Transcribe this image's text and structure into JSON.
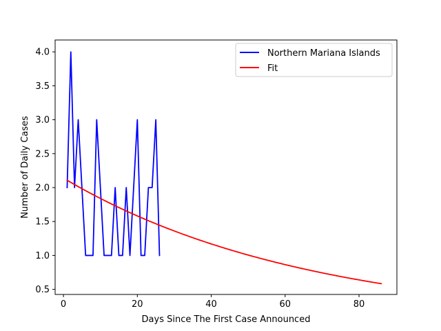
{
  "chart_data": {
    "type": "line",
    "xlabel": "Days Since The First Case Announced",
    "ylabel": "Number of Daily Cases",
    "xlim": [
      -2.25,
      90.25
    ],
    "ylim": [
      0.425,
      4.175
    ],
    "xticks": [
      0,
      20,
      40,
      60,
      80
    ],
    "yticks": [
      0.5,
      1.0,
      1.5,
      2.0,
      2.5,
      3.0,
      3.5,
      4.0
    ],
    "ytick_labels": [
      "0.5",
      "1.0",
      "1.5",
      "2.0",
      "2.5",
      "3.0",
      "3.5",
      "4.0"
    ],
    "grid": false,
    "legend_position": "top-right",
    "series": [
      {
        "name": "Northern Mariana Islands",
        "color": "#0000ff",
        "x": [
          1,
          2,
          3,
          4,
          5,
          6,
          7,
          8,
          9,
          10,
          11,
          12,
          13,
          14,
          15,
          16,
          17,
          18,
          19,
          20,
          21,
          22,
          23,
          24,
          25,
          26
        ],
        "y": [
          2,
          4,
          2,
          3,
          2,
          1,
          1,
          1,
          3,
          2,
          1,
          1,
          1,
          2,
          1,
          1,
          2,
          1,
          2,
          3,
          1,
          1,
          2,
          2,
          3,
          1
        ]
      },
      {
        "name": "Fit",
        "color": "#ff0000",
        "fit": {
          "a": 2.14,
          "b": 0.0151,
          "x_start": 1,
          "x_end": 86
        }
      }
    ]
  }
}
